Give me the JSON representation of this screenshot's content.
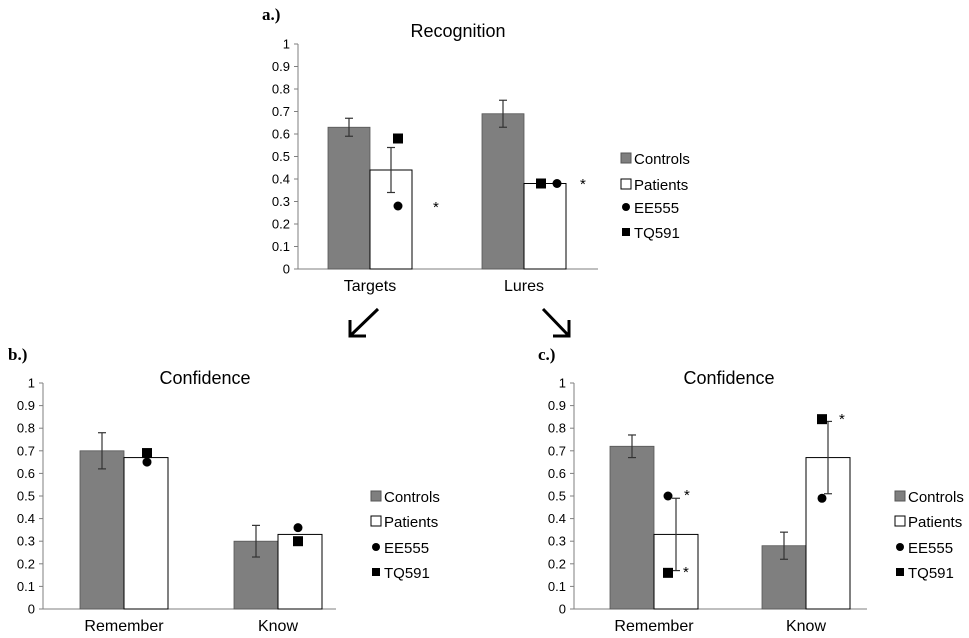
{
  "colors": {
    "controls": "#7f7f7f",
    "patients": "#ffffff",
    "axis": "#7f7f7f",
    "marker": "#000000"
  },
  "chart_data": [
    {
      "panel_label": "a.)",
      "type": "bar",
      "title": "Recognition",
      "categories": [
        "Targets",
        "Lures"
      ],
      "ylim": [
        0,
        1
      ],
      "yticks": [
        "0",
        "0.1",
        "0.2",
        "0.3",
        "0.4",
        "0.5",
        "0.6",
        "0.7",
        "0.8",
        "0.9",
        "1"
      ],
      "grid": false,
      "legend_position": "right",
      "series": [
        {
          "name": "Controls",
          "values": [
            0.63,
            0.69
          ],
          "error": [
            0.04,
            0.06
          ]
        },
        {
          "name": "Patients",
          "values": [
            0.44,
            0.38
          ],
          "error": [
            0.1,
            0.0
          ]
        }
      ],
      "individuals": [
        {
          "name": "EE555",
          "marker": "circle",
          "values": [
            0.28,
            0.38
          ]
        },
        {
          "name": "TQ591",
          "marker": "square",
          "values": [
            0.58,
            0.38
          ]
        }
      ],
      "annotations": [
        {
          "category": "Targets",
          "text": "*"
        },
        {
          "category": "Lures",
          "text": "*"
        }
      ]
    },
    {
      "panel_label": "b.)",
      "type": "bar",
      "title": "Confidence",
      "categories": [
        "Remember",
        "Know"
      ],
      "ylim": [
        0,
        1
      ],
      "yticks": [
        "0",
        "0.1",
        "0.2",
        "0.3",
        "0.4",
        "0.5",
        "0.6",
        "0.7",
        "0.8",
        "0.9",
        "1"
      ],
      "grid": false,
      "legend_position": "right",
      "series": [
        {
          "name": "Controls",
          "values": [
            0.7,
            0.3
          ],
          "error": [
            0.08,
            0.07
          ]
        },
        {
          "name": "Patients",
          "values": [
            0.67,
            0.33
          ],
          "error": [
            0.0,
            0.0
          ]
        }
      ],
      "individuals": [
        {
          "name": "EE555",
          "marker": "circle",
          "values": [
            0.65,
            0.36
          ]
        },
        {
          "name": "TQ591",
          "marker": "square",
          "values": [
            0.69,
            0.3
          ]
        }
      ],
      "annotations": []
    },
    {
      "panel_label": "c.)",
      "type": "bar",
      "title": "Confidence",
      "categories": [
        "Remember",
        "Know"
      ],
      "ylim": [
        0,
        1
      ],
      "yticks": [
        "0",
        "0.1",
        "0.2",
        "0.3",
        "0.4",
        "0.5",
        "0.6",
        "0.7",
        "0.8",
        "0.9",
        "1"
      ],
      "grid": false,
      "legend_position": "right",
      "series": [
        {
          "name": "Controls",
          "values": [
            0.72,
            0.28
          ],
          "error": [
            0.05,
            0.06
          ]
        },
        {
          "name": "Patients",
          "values": [
            0.33,
            0.67
          ],
          "error": [
            0.16,
            0.16
          ]
        }
      ],
      "individuals": [
        {
          "name": "EE555",
          "marker": "circle",
          "values": [
            0.5,
            0.49
          ]
        },
        {
          "name": "TQ591",
          "marker": "square",
          "values": [
            0.16,
            0.84
          ]
        }
      ],
      "annotations": [
        {
          "category": "Remember",
          "text": "*",
          "near": "EE555"
        },
        {
          "category": "Remember",
          "text": "*",
          "near": "TQ591"
        },
        {
          "category": "Know",
          "text": "*",
          "near": "TQ591"
        }
      ]
    }
  ]
}
